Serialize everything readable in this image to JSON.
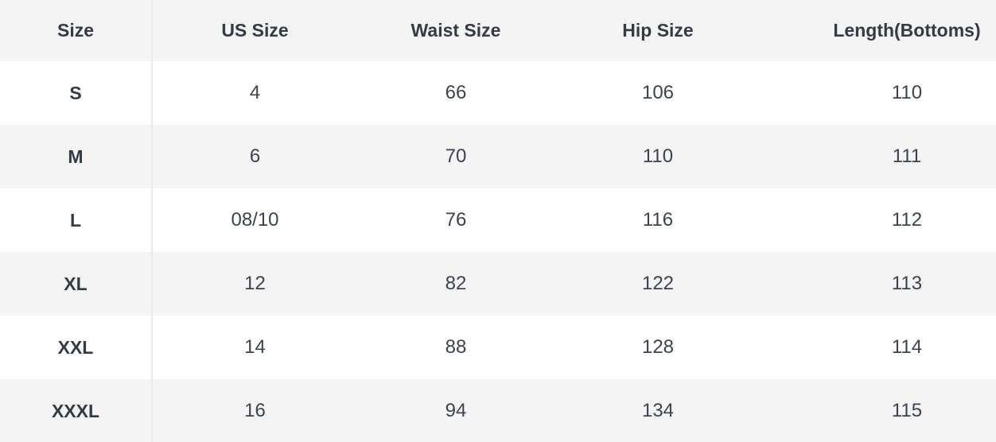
{
  "colors": {
    "row_alt_background": "#f4f4f5",
    "row_background": "#ffffff",
    "divider": "#e9e9e9",
    "header_text": "#333b48",
    "cell_text": "#3c4350"
  },
  "table": {
    "columns": [
      "Size",
      "US Size",
      "Waist Size",
      "Hip Size",
      "Length(Bottoms)"
    ],
    "rows": [
      {
        "size": "S",
        "us_size": "4",
        "waist_size": "66",
        "hip_size": "106",
        "length_bottoms": "110"
      },
      {
        "size": "M",
        "us_size": "6",
        "waist_size": "70",
        "hip_size": "110",
        "length_bottoms": "111"
      },
      {
        "size": "L",
        "us_size": "08/10",
        "waist_size": "76",
        "hip_size": "116",
        "length_bottoms": "112"
      },
      {
        "size": "XL",
        "us_size": "12",
        "waist_size": "82",
        "hip_size": "122",
        "length_bottoms": "113"
      },
      {
        "size": "XXL",
        "us_size": "14",
        "waist_size": "88",
        "hip_size": "128",
        "length_bottoms": "114"
      },
      {
        "size": "XXXL",
        "us_size": "16",
        "waist_size": "94",
        "hip_size": "134",
        "length_bottoms": "115"
      }
    ]
  }
}
